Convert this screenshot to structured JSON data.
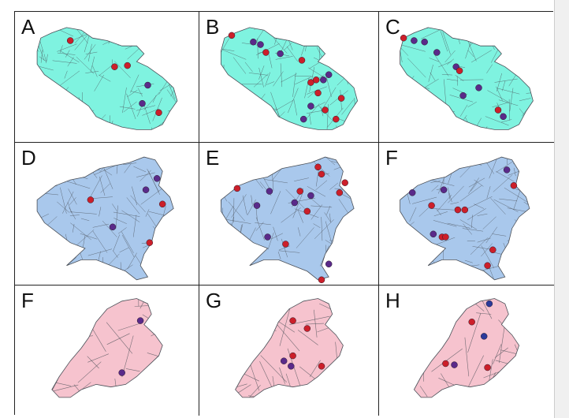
{
  "panels": [
    {
      "label": "A",
      "map": "teal",
      "points": [
        {
          "x": 0.3,
          "y": 0.22,
          "c": "red"
        },
        {
          "x": 0.54,
          "y": 0.42,
          "c": "red"
        },
        {
          "x": 0.61,
          "y": 0.41,
          "c": "red"
        },
        {
          "x": 0.72,
          "y": 0.56,
          "c": "purple"
        },
        {
          "x": 0.69,
          "y": 0.7,
          "c": "purple"
        },
        {
          "x": 0.78,
          "y": 0.77,
          "c": "red"
        }
      ]
    },
    {
      "label": "B",
      "map": "teal",
      "points": [
        {
          "x": 0.18,
          "y": 0.18,
          "c": "red"
        },
        {
          "x": 0.3,
          "y": 0.23,
          "c": "purple"
        },
        {
          "x": 0.34,
          "y": 0.25,
          "c": "purple"
        },
        {
          "x": 0.37,
          "y": 0.31,
          "c": "red"
        },
        {
          "x": 0.45,
          "y": 0.32,
          "c": "purple"
        },
        {
          "x": 0.57,
          "y": 0.37,
          "c": "red"
        },
        {
          "x": 0.62,
          "y": 0.54,
          "c": "red"
        },
        {
          "x": 0.65,
          "y": 0.52,
          "c": "red"
        },
        {
          "x": 0.69,
          "y": 0.52,
          "c": "purple"
        },
        {
          "x": 0.72,
          "y": 0.48,
          "c": "purple"
        },
        {
          "x": 0.66,
          "y": 0.62,
          "c": "red"
        },
        {
          "x": 0.79,
          "y": 0.66,
          "c": "red"
        },
        {
          "x": 0.62,
          "y": 0.72,
          "c": "purple"
        },
        {
          "x": 0.7,
          "y": 0.75,
          "c": "red"
        },
        {
          "x": 0.58,
          "y": 0.82,
          "c": "purple"
        },
        {
          "x": 0.76,
          "y": 0.82,
          "c": "red"
        }
      ]
    },
    {
      "label": "C",
      "map": "teal",
      "points": [
        {
          "x": 0.14,
          "y": 0.2,
          "c": "red"
        },
        {
          "x": 0.2,
          "y": 0.22,
          "c": "purple"
        },
        {
          "x": 0.26,
          "y": 0.23,
          "c": "purple"
        },
        {
          "x": 0.33,
          "y": 0.31,
          "c": "purple"
        },
        {
          "x": 0.44,
          "y": 0.42,
          "c": "purple"
        },
        {
          "x": 0.46,
          "y": 0.45,
          "c": "red"
        },
        {
          "x": 0.57,
          "y": 0.58,
          "c": "purple"
        },
        {
          "x": 0.48,
          "y": 0.64,
          "c": "purple"
        },
        {
          "x": 0.68,
          "y": 0.75,
          "c": "red"
        },
        {
          "x": 0.71,
          "y": 0.8,
          "c": "purple"
        }
      ]
    },
    {
      "label": "D",
      "map": "blue",
      "points": [
        {
          "x": 0.77,
          "y": 0.25,
          "c": "purple"
        },
        {
          "x": 0.71,
          "y": 0.33,
          "c": "purple"
        },
        {
          "x": 0.41,
          "y": 0.4,
          "c": "red"
        },
        {
          "x": 0.8,
          "y": 0.43,
          "c": "red"
        },
        {
          "x": 0.53,
          "y": 0.59,
          "c": "purple"
        },
        {
          "x": 0.73,
          "y": 0.7,
          "c": "red"
        }
      ]
    },
    {
      "label": "E",
      "map": "blue",
      "points": [
        {
          "x": 0.66,
          "y": 0.17,
          "c": "red"
        },
        {
          "x": 0.68,
          "y": 0.22,
          "c": "red"
        },
        {
          "x": 0.21,
          "y": 0.32,
          "c": "red"
        },
        {
          "x": 0.39,
          "y": 0.34,
          "c": "purple"
        },
        {
          "x": 0.56,
          "y": 0.34,
          "c": "red"
        },
        {
          "x": 0.62,
          "y": 0.37,
          "c": "purple"
        },
        {
          "x": 0.81,
          "y": 0.28,
          "c": "red"
        },
        {
          "x": 0.78,
          "y": 0.35,
          "c": "red"
        },
        {
          "x": 0.53,
          "y": 0.42,
          "c": "purple"
        },
        {
          "x": 0.32,
          "y": 0.44,
          "c": "purple"
        },
        {
          "x": 0.6,
          "y": 0.48,
          "c": "red"
        },
        {
          "x": 0.38,
          "y": 0.66,
          "c": "purple"
        },
        {
          "x": 0.48,
          "y": 0.71,
          "c": "red"
        },
        {
          "x": 0.72,
          "y": 0.85,
          "c": "purple"
        },
        {
          "x": 0.68,
          "y": 0.96,
          "c": "red"
        }
      ]
    },
    {
      "label": "F",
      "map": "blue",
      "points": [
        {
          "x": 0.73,
          "y": 0.19,
          "c": "purple"
        },
        {
          "x": 0.77,
          "y": 0.3,
          "c": "red"
        },
        {
          "x": 0.19,
          "y": 0.35,
          "c": "purple"
        },
        {
          "x": 0.37,
          "y": 0.33,
          "c": "purple"
        },
        {
          "x": 0.3,
          "y": 0.44,
          "c": "red"
        },
        {
          "x": 0.45,
          "y": 0.47,
          "c": "red"
        },
        {
          "x": 0.49,
          "y": 0.47,
          "c": "red"
        },
        {
          "x": 0.31,
          "y": 0.64,
          "c": "purple"
        },
        {
          "x": 0.36,
          "y": 0.66,
          "c": "red"
        },
        {
          "x": 0.38,
          "y": 0.66,
          "c": "red"
        },
        {
          "x": 0.65,
          "y": 0.75,
          "c": "red"
        },
        {
          "x": 0.62,
          "y": 0.86,
          "c": "red"
        }
      ]
    },
    {
      "label": "F",
      "map": "pink",
      "points": [
        {
          "x": 0.68,
          "y": 0.27,
          "c": "purple"
        },
        {
          "x": 0.58,
          "y": 0.67,
          "c": "purple"
        }
      ]
    },
    {
      "label": "G",
      "map": "pink",
      "points": [
        {
          "x": 0.52,
          "y": 0.27,
          "c": "red"
        },
        {
          "x": 0.6,
          "y": 0.33,
          "c": "red"
        },
        {
          "x": 0.52,
          "y": 0.54,
          "c": "red"
        },
        {
          "x": 0.47,
          "y": 0.58,
          "c": "purple"
        },
        {
          "x": 0.51,
          "y": 0.62,
          "c": "purple"
        },
        {
          "x": 0.68,
          "y": 0.62,
          "c": "red"
        }
      ]
    },
    {
      "label": "H",
      "map": "pink",
      "points": [
        {
          "x": 0.63,
          "y": 0.14,
          "c": "blue"
        },
        {
          "x": 0.53,
          "y": 0.28,
          "c": "red"
        },
        {
          "x": 0.6,
          "y": 0.39,
          "c": "blue"
        },
        {
          "x": 0.38,
          "y": 0.6,
          "c": "red"
        },
        {
          "x": 0.43,
          "y": 0.61,
          "c": "purple"
        },
        {
          "x": 0.62,
          "y": 0.63,
          "c": "red"
        }
      ]
    }
  ],
  "colors": {
    "teal": "#7ff3e0",
    "blue": "#a9c8ec",
    "pink": "#f6c3ce",
    "road": "#4a4f57",
    "red": "#cc1f2a",
    "purple": "#5a2a8a",
    "blue_point": "#2c3a9a"
  }
}
